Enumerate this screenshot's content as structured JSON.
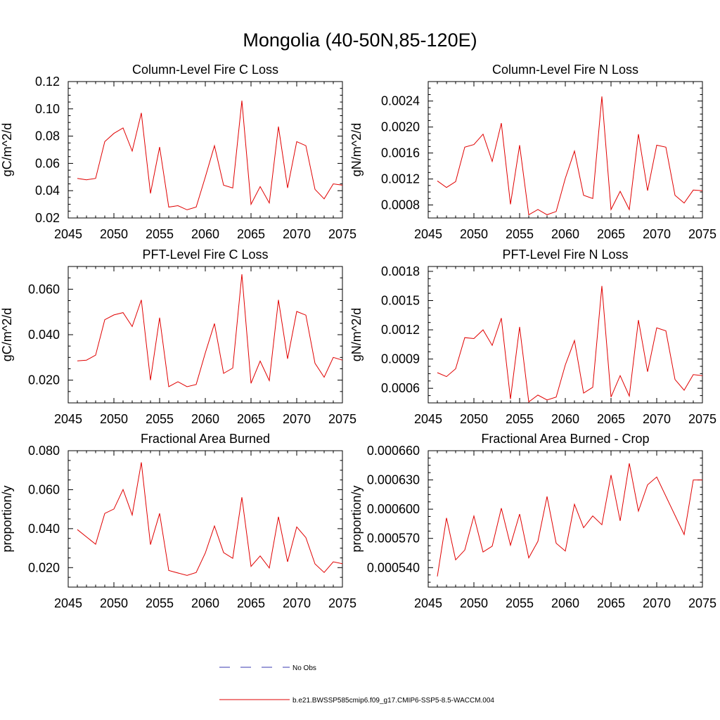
{
  "title": "Mongolia (40-50N,85-120E)",
  "legend": {
    "obs_label": "No Obs",
    "model_label": "b.e21.BWSSP585cmip6.f09_g17.CMIP6-SSP5-8.5-WACCM.004",
    "obs_color": "#3a3ab0",
    "model_color": "#e00000"
  },
  "chart_data": [
    {
      "type": "line",
      "title": "Column-Level Fire C Loss",
      "ylabel": "gC/m^2/d",
      "xlim": [
        2045,
        2075
      ],
      "ylim": [
        0.02,
        0.12
      ],
      "xticks": [
        "2045",
        "2050",
        "2055",
        "2060",
        "2065",
        "2070",
        "2075"
      ],
      "yticks": [
        "0.02",
        "0.04",
        "0.06",
        "0.08",
        "0.10",
        "0.12"
      ],
      "x": [
        2046,
        2047,
        2048,
        2049,
        2050,
        2051,
        2052,
        2053,
        2054,
        2055,
        2056,
        2057,
        2058,
        2059,
        2060,
        2061,
        2062,
        2063,
        2064,
        2065,
        2066,
        2067,
        2068,
        2069,
        2070,
        2071,
        2072,
        2073,
        2074,
        2075
      ],
      "series": [
        {
          "name": "b.e21.BWSSP585cmip6.f09_g17.CMIP6-SSP5-8.5-WACCM.004",
          "values": [
            0.049,
            0.048,
            0.049,
            0.076,
            0.082,
            0.086,
            0.069,
            0.097,
            0.038,
            0.072,
            0.028,
            0.029,
            0.026,
            0.028,
            0.05,
            0.073,
            0.044,
            0.042,
            0.106,
            0.03,
            0.043,
            0.031,
            0.087,
            0.042,
            0.076,
            0.073,
            0.041,
            0.034,
            0.045,
            0.044
          ]
        }
      ]
    },
    {
      "type": "line",
      "title": "Column-Level Fire N Loss",
      "ylabel": "gN/m^2/d",
      "xlim": [
        2045,
        2075
      ],
      "ylim": [
        0.0006,
        0.0027
      ],
      "xticks": [
        "2045",
        "2050",
        "2055",
        "2060",
        "2065",
        "2070",
        "2075"
      ],
      "yticks": [
        "0.0008",
        "0.0012",
        "0.0016",
        "0.0020",
        "0.0024"
      ],
      "x": [
        2046,
        2047,
        2048,
        2049,
        2050,
        2051,
        2052,
        2053,
        2054,
        2055,
        2056,
        2057,
        2058,
        2059,
        2060,
        2061,
        2062,
        2063,
        2064,
        2065,
        2066,
        2067,
        2068,
        2069,
        2070,
        2071,
        2072,
        2073,
        2074,
        2075
      ],
      "series": [
        {
          "name": "b.e21.BWSSP585cmip6.f09_g17.CMIP6-SSP5-8.5-WACCM.004",
          "values": [
            0.00117,
            0.00107,
            0.00116,
            0.00169,
            0.00173,
            0.00189,
            0.00147,
            0.00206,
            0.00081,
            0.00172,
            0.00065,
            0.00073,
            0.00065,
            0.0007,
            0.00121,
            0.00163,
            0.00095,
            0.0009,
            0.00247,
            0.00073,
            0.00101,
            0.00073,
            0.00189,
            0.00102,
            0.00172,
            0.00169,
            0.00095,
            0.00083,
            0.00103,
            0.00102
          ]
        }
      ]
    },
    {
      "type": "line",
      "title": "PFT-Level Fire C Loss",
      "ylabel": "gC/m^2/d",
      "xlim": [
        2045,
        2075
      ],
      "ylim": [
        0.01,
        0.07
      ],
      "xticks": [
        "2045",
        "2050",
        "2055",
        "2060",
        "2065",
        "2070",
        "2075"
      ],
      "yticks": [
        "0.020",
        "0.040",
        "0.060"
      ],
      "x": [
        2046,
        2047,
        2048,
        2049,
        2050,
        2051,
        2052,
        2053,
        2054,
        2055,
        2056,
        2057,
        2058,
        2059,
        2060,
        2061,
        2062,
        2063,
        2064,
        2065,
        2066,
        2067,
        2068,
        2069,
        2070,
        2071,
        2072,
        2073,
        2074,
        2075
      ],
      "series": [
        {
          "name": "b.e21.BWSSP585cmip6.f09_g17.CMIP6-SSP5-8.5-WACCM.004",
          "values": [
            0.0285,
            0.0288,
            0.031,
            0.0466,
            0.0487,
            0.0497,
            0.0436,
            0.0553,
            0.02,
            0.0475,
            0.0171,
            0.0193,
            0.0171,
            0.0181,
            0.032,
            0.0449,
            0.023,
            0.0253,
            0.0666,
            0.0186,
            0.0284,
            0.0198,
            0.0553,
            0.0294,
            0.0502,
            0.0486,
            0.0274,
            0.0213,
            0.03,
            0.0288
          ]
        }
      ]
    },
    {
      "type": "line",
      "title": "PFT-Level Fire N Loss",
      "ylabel": "gN/m^2/d",
      "xlim": [
        2045,
        2075
      ],
      "ylim": [
        0.00045,
        0.00185
      ],
      "xticks": [
        "2045",
        "2050",
        "2055",
        "2060",
        "2065",
        "2070",
        "2075"
      ],
      "yticks": [
        "0.0006",
        "0.0009",
        "0.0012",
        "0.0015",
        "0.0018"
      ],
      "x": [
        2046,
        2047,
        2048,
        2049,
        2050,
        2051,
        2052,
        2053,
        2054,
        2055,
        2056,
        2057,
        2058,
        2059,
        2060,
        2061,
        2062,
        2063,
        2064,
        2065,
        2066,
        2067,
        2068,
        2069,
        2070,
        2071,
        2072,
        2073,
        2074,
        2075
      ],
      "series": [
        {
          "name": "b.e21.BWSSP585cmip6.f09_g17.CMIP6-SSP5-8.5-WACCM.004",
          "values": [
            0.00076,
            0.00072,
            0.0008,
            0.00112,
            0.00111,
            0.0012,
            0.00104,
            0.00132,
            0.00049,
            0.00123,
            0.00046,
            0.00053,
            0.00048,
            0.00051,
            0.00084,
            0.00109,
            0.00055,
            0.00061,
            0.00165,
            0.00051,
            0.00073,
            0.00052,
            0.0013,
            0.00077,
            0.00122,
            0.00119,
            0.00069,
            0.00058,
            0.00074,
            0.00073
          ]
        }
      ]
    },
    {
      "type": "line",
      "title": "Fractional Area Burned",
      "ylabel": "proportion/y",
      "xlim": [
        2045,
        2075
      ],
      "ylim": [
        0.01,
        0.08
      ],
      "xticks": [
        "2045",
        "2050",
        "2055",
        "2060",
        "2065",
        "2070",
        "2075"
      ],
      "yticks": [
        "0.020",
        "0.040",
        "0.060",
        "0.080"
      ],
      "x": [
        2046,
        2048,
        2049,
        2050,
        2051,
        2052,
        2053,
        2054,
        2055,
        2056,
        2058,
        2059,
        2060,
        2061,
        2062,
        2063,
        2064,
        2065,
        2066,
        2067,
        2068,
        2069,
        2070,
        2071,
        2072,
        2073,
        2074,
        2075
      ],
      "series": [
        {
          "name": "b.e21.BWSSP585cmip6.f09_g17.CMIP6-SSP5-8.5-WACCM.004",
          "values": [
            0.0395,
            0.032,
            0.0478,
            0.0501,
            0.0601,
            0.047,
            0.074,
            0.0318,
            0.0478,
            0.0185,
            0.016,
            0.0175,
            0.0275,
            0.0414,
            0.0277,
            0.0248,
            0.0561,
            0.0206,
            0.026,
            0.0198,
            0.0461,
            0.023,
            0.0409,
            0.0354,
            0.0219,
            0.0175,
            0.023,
            0.022
          ]
        }
      ]
    },
    {
      "type": "line",
      "title": "Fractional Area Burned - Crop",
      "ylabel": "proportion/y",
      "xlim": [
        2045,
        2075
      ],
      "ylim": [
        0.00052,
        0.00066
      ],
      "xticks": [
        "2045",
        "2050",
        "2055",
        "2060",
        "2065",
        "2070",
        "2075"
      ],
      "yticks": [
        "0.000540",
        "0.000570",
        "0.000600",
        "0.000630",
        "0.000660"
      ],
      "x": [
        2046,
        2047,
        2048,
        2049,
        2050,
        2051,
        2052,
        2053,
        2054,
        2055,
        2056,
        2057,
        2058,
        2059,
        2060,
        2061,
        2062,
        2063,
        2064,
        2065,
        2066,
        2067,
        2068,
        2069,
        2070,
        2073,
        2074,
        2075
      ],
      "series": [
        {
          "name": "b.e21.BWSSP585cmip6.f09_g17.CMIP6-SSP5-8.5-WACCM.004",
          "values": [
            0.000531,
            0.000591,
            0.000548,
            0.000558,
            0.000593,
            0.000556,
            0.000562,
            0.000601,
            0.000563,
            0.000595,
            0.00055,
            0.000567,
            0.000613,
            0.000565,
            0.000557,
            0.000605,
            0.000581,
            0.000593,
            0.000584,
            0.000635,
            0.000588,
            0.000647,
            0.000598,
            0.000625,
            0.000633,
            0.000574,
            0.00063,
            0.00063
          ]
        }
      ]
    }
  ]
}
